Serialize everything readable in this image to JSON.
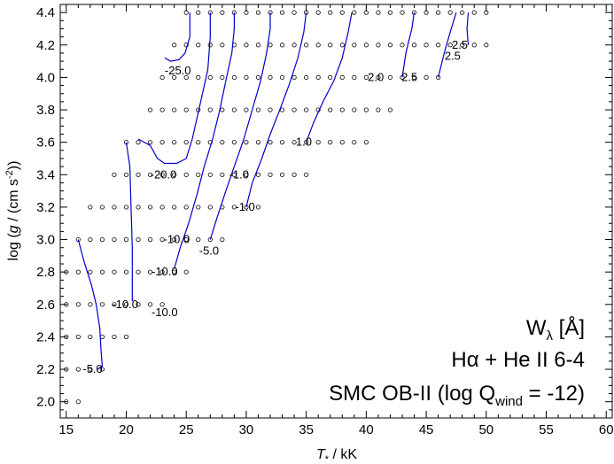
{
  "chart_data": {
    "type": "scatter",
    "subtype": "contour-over-model-grid",
    "xlabel": {
      "var": "T",
      "sub": "*",
      "unit": " / kK"
    },
    "ylabel": {
      "pre": "log (",
      "var": "g",
      "unit": " / (cm s",
      "sup": "-2",
      "post": "))"
    },
    "xlim": [
      14.5,
      60.5
    ],
    "ylim": [
      1.9,
      4.45
    ],
    "x_ticks": [
      "15",
      "20",
      "25",
      "30",
      "35",
      "40",
      "45",
      "50",
      "55",
      "60"
    ],
    "y_ticks": [
      "2.0",
      "2.2",
      "2.4",
      "2.6",
      "2.8",
      "3.0",
      "3.2",
      "3.4",
      "3.6",
      "3.8",
      "4.0",
      "4.2",
      "4.4"
    ],
    "grid": false,
    "legend": {
      "placement": "bottom-right",
      "line1": {
        "main": "W",
        "sub": "λ",
        "rest": "  [Å]"
      },
      "line2": "Hα + He II 6-4",
      "line3": {
        "main": "SMC OB-II (log Q",
        "sub": "wind",
        "rest": " = -12)"
      }
    },
    "colors": {
      "contour": "#0000cc",
      "marker": "#000000"
    },
    "grid_models": [
      {
        "logg": 4.4,
        "teff": [
          25,
          26,
          27,
          28,
          29,
          30,
          31,
          32,
          33,
          34,
          35,
          36,
          37,
          38,
          39,
          40,
          41,
          42,
          43,
          44,
          45,
          46,
          47,
          48,
          49,
          50
        ]
      },
      {
        "logg": 4.2,
        "teff": [
          24,
          25,
          26,
          27,
          28,
          29,
          30,
          31,
          32,
          33,
          34,
          35,
          36,
          37,
          38,
          39,
          40,
          41,
          42,
          43,
          44,
          45,
          46,
          47,
          48,
          49,
          50
        ]
      },
      {
        "logg": 4.0,
        "teff": [
          23,
          24,
          25,
          26,
          27,
          28,
          29,
          30,
          31,
          32,
          33,
          34,
          35,
          36,
          37,
          38,
          39,
          40,
          41,
          42,
          43,
          44,
          45,
          46
        ]
      },
      {
        "logg": 3.8,
        "teff": [
          22,
          23,
          24,
          25,
          26,
          27,
          28,
          29,
          30,
          31,
          32,
          33,
          34,
          35,
          36,
          37,
          38,
          39,
          40,
          41,
          42
        ]
      },
      {
        "logg": 3.6,
        "teff": [
          20,
          21,
          22,
          23,
          24,
          25,
          26,
          27,
          28,
          29,
          30,
          31,
          32,
          33,
          34,
          35,
          36,
          37,
          38,
          39,
          40
        ]
      },
      {
        "logg": 3.4,
        "teff": [
          19,
          20,
          21,
          22,
          23,
          24,
          25,
          26,
          27,
          28,
          29,
          30,
          31,
          32,
          33,
          34,
          35
        ]
      },
      {
        "logg": 3.2,
        "teff": [
          17,
          18,
          19,
          20,
          21,
          22,
          23,
          24,
          25,
          26,
          27,
          28,
          29,
          30,
          31
        ]
      },
      {
        "logg": 3.0,
        "teff": [
          16,
          17,
          18,
          19,
          20,
          21,
          22,
          23,
          24,
          25,
          26,
          27,
          28
        ]
      },
      {
        "logg": 2.8,
        "teff": [
          15,
          16,
          17,
          18,
          19,
          20,
          21,
          22,
          23,
          24,
          25
        ]
      },
      {
        "logg": 2.6,
        "teff": [
          15,
          16,
          17,
          18,
          19,
          20,
          21,
          22,
          23
        ]
      },
      {
        "logg": 2.4,
        "teff": [
          15,
          16,
          17,
          18,
          19,
          20
        ]
      },
      {
        "logg": 2.2,
        "teff": [
          15,
          16,
          17,
          18
        ]
      },
      {
        "logg": 2.0,
        "teff": [
          15,
          16
        ]
      }
    ],
    "contours": [
      {
        "points": [
          [
            16.0,
            3.0
          ],
          [
            16.5,
            2.86
          ],
          [
            17.1,
            2.72
          ],
          [
            17.5,
            2.6
          ],
          [
            17.8,
            2.45
          ],
          [
            17.9,
            2.32
          ],
          [
            18.0,
            2.22
          ],
          [
            17.6,
            2.2
          ]
        ]
      },
      {
        "points": [
          [
            20.0,
            3.6
          ],
          [
            20.3,
            3.45
          ],
          [
            20.4,
            3.2
          ],
          [
            20.5,
            2.95
          ],
          [
            20.5,
            2.72
          ],
          [
            20.5,
            2.62
          ]
        ]
      },
      {
        "points": [
          [
            21.0,
            3.62
          ],
          [
            22.0,
            3.58
          ],
          [
            22.6,
            3.5
          ],
          [
            23.2,
            3.47
          ],
          [
            24.2,
            3.47
          ],
          [
            25.0,
            3.5
          ],
          [
            25.5,
            3.62
          ],
          [
            26.2,
            3.85
          ],
          [
            26.8,
            4.05
          ],
          [
            27.0,
            4.25
          ],
          [
            27.0,
            4.4
          ]
        ]
      },
      {
        "points": [
          [
            23.2,
            4.12
          ],
          [
            23.7,
            4.1
          ],
          [
            24.4,
            4.11
          ],
          [
            24.9,
            4.15
          ],
          [
            25.3,
            4.25
          ],
          [
            25.3,
            4.4
          ]
        ]
      },
      {
        "points": [
          [
            24.0,
            2.82
          ],
          [
            24.5,
            2.95
          ],
          [
            25.2,
            3.1
          ],
          [
            25.9,
            3.28
          ],
          [
            26.5,
            3.45
          ],
          [
            27.2,
            3.62
          ],
          [
            27.8,
            3.8
          ],
          [
            28.3,
            3.98
          ],
          [
            28.8,
            4.15
          ],
          [
            29.0,
            4.3
          ],
          [
            29.0,
            4.4
          ]
        ]
      },
      {
        "points": [
          [
            27.0,
            3.0
          ],
          [
            27.5,
            3.12
          ],
          [
            28.3,
            3.3
          ],
          [
            29.0,
            3.45
          ],
          [
            29.8,
            3.62
          ],
          [
            30.5,
            3.8
          ],
          [
            31.2,
            3.98
          ],
          [
            31.7,
            4.15
          ],
          [
            32.0,
            4.3
          ],
          [
            32.0,
            4.4
          ]
        ]
      },
      {
        "points": [
          [
            30.0,
            3.2
          ],
          [
            30.5,
            3.35
          ],
          [
            31.3,
            3.5
          ],
          [
            32.0,
            3.65
          ],
          [
            32.8,
            3.8
          ],
          [
            33.6,
            3.96
          ],
          [
            34.3,
            4.12
          ],
          [
            34.8,
            4.28
          ],
          [
            35.0,
            4.4
          ]
        ]
      },
      {
        "points": [
          [
            35.0,
            3.6
          ],
          [
            35.6,
            3.72
          ],
          [
            36.4,
            3.85
          ],
          [
            37.3,
            3.98
          ],
          [
            38.0,
            4.12
          ],
          [
            38.5,
            4.28
          ],
          [
            38.8,
            4.4
          ]
        ]
      },
      {
        "points": [
          [
            43.0,
            4.0
          ],
          [
            43.3,
            4.15
          ],
          [
            43.8,
            4.3
          ],
          [
            44.0,
            4.4
          ]
        ]
      },
      {
        "points": [
          [
            46.0,
            4.0
          ],
          [
            46.5,
            4.15
          ],
          [
            47.0,
            4.28
          ],
          [
            47.5,
            4.4
          ]
        ]
      },
      {
        "points": [
          [
            48.5,
            4.2
          ],
          [
            48.4,
            4.3
          ],
          [
            48.5,
            4.4
          ]
        ]
      }
    ],
    "contour_labels": [
      {
        "text": "-5.0",
        "x": 17.2,
        "y": 2.2
      },
      {
        "text": "-10.0",
        "x": 19.9,
        "y": 2.6
      },
      {
        "text": "-10.0",
        "x": 23.2,
        "y": 2.55
      },
      {
        "text": "-10.0",
        "x": 23.2,
        "y": 2.8
      },
      {
        "text": "-10.0",
        "x": 24.2,
        "y": 3.0
      },
      {
        "text": "-5.0",
        "x": 26.9,
        "y": 2.93
      },
      {
        "text": "-20.0",
        "x": 23.1,
        "y": 3.4
      },
      {
        "text": "-25.0",
        "x": 24.3,
        "y": 4.04
      },
      {
        "text": "-1.0",
        "x": 29.9,
        "y": 3.2
      },
      {
        "text": "-1.0",
        "x": 29.4,
        "y": 3.4
      },
      {
        "text": "1.0",
        "x": 34.8,
        "y": 3.6
      },
      {
        "text": "2.0",
        "x": 40.8,
        "y": 4.0
      },
      {
        "text": "2.5",
        "x": 43.6,
        "y": 4.0
      },
      {
        "text": "2.5",
        "x": 47.8,
        "y": 4.2
      },
      {
        "text": "2.5",
        "x": 47.2,
        "y": 4.13
      }
    ]
  }
}
